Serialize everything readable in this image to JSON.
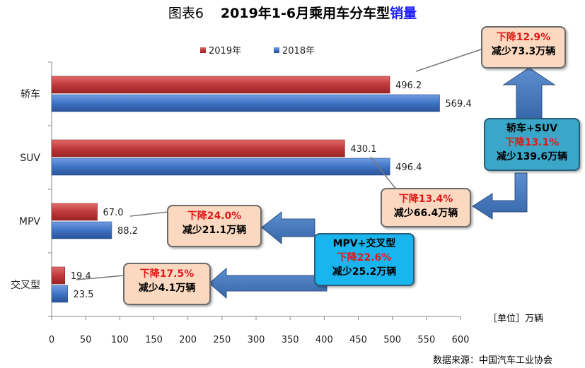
{
  "title": {
    "label": "图表6",
    "main": "2019年1-6月乘用车分车型",
    "highlight": "销量"
  },
  "chart_data": {
    "type": "bar",
    "orientation": "horizontal",
    "categories": [
      "轿车",
      "SUV",
      "MPV",
      "交叉型"
    ],
    "series": [
      {
        "name": "2019年",
        "color": "#c0393b",
        "values": [
          496.2,
          430.1,
          67.0,
          19.4
        ]
      },
      {
        "name": "2018年",
        "color": "#3f73c4",
        "values": [
          569.4,
          496.4,
          88.2,
          23.5
        ]
      }
    ],
    "xlim": [
      0,
      600
    ],
    "xticks": [
      0,
      50,
      100,
      150,
      200,
      250,
      300,
      350,
      400,
      450,
      500,
      550,
      600
    ],
    "legend": "top",
    "grid": false,
    "unit": "［单位］万辆"
  },
  "callouts": {
    "sedan": {
      "line1": "下降12.9%",
      "line2": "减少73.3万辆"
    },
    "sedan_suv": {
      "line0": "轿车+SUV",
      "line1": "下降13.1%",
      "line2": "减少139.6万辆"
    },
    "suv": {
      "line1": "下降13.4%",
      "line2": "减少66.4万辆"
    },
    "mpv": {
      "line1": "下降24.0%",
      "line2": "减少21.1万辆"
    },
    "mpv_cross": {
      "line0": "MPV+交叉型",
      "line1": "下降22.6%",
      "line2": "减少25.2万辆"
    },
    "cross": {
      "line1": "下降17.5%",
      "line2": "减少4.1万辆"
    }
  },
  "source": "数据来源：中国汽车工业协会"
}
